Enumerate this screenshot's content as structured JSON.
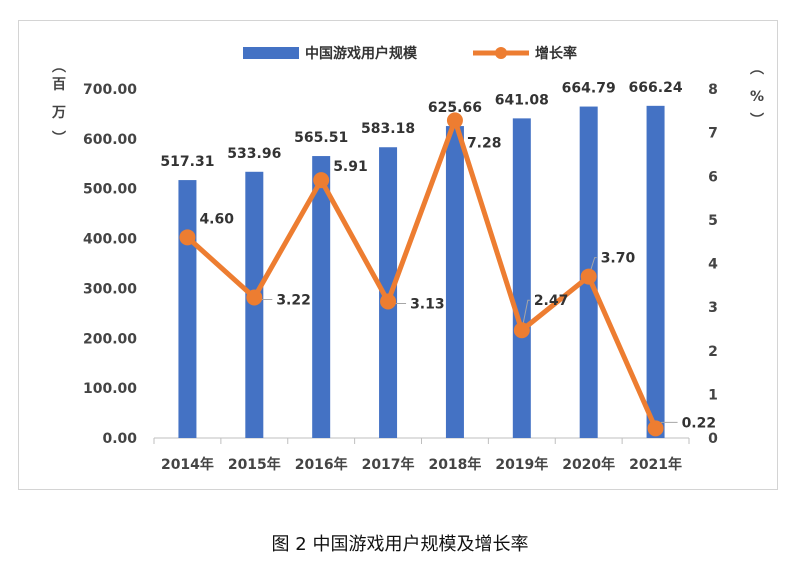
{
  "caption": "图 2 中国游戏用户规模及增长率",
  "units": {
    "left": [
      "︵",
      "百",
      "万",
      "︶"
    ],
    "right": [
      "︵",
      "%",
      "︶"
    ]
  },
  "colors": {
    "bar": "#4472C4",
    "line": "#ED7D31",
    "axis": "#bfbfbf"
  },
  "chart_data": {
    "type": "bar",
    "categories": [
      "2014年",
      "2015年",
      "2016年",
      "2017年",
      "2018年",
      "2019年",
      "2020年",
      "2021年"
    ],
    "series": [
      {
        "name": "中国游戏用户规模",
        "type": "bar",
        "axis": "left",
        "values": [
          517.31,
          533.96,
          565.51,
          583.18,
          625.66,
          641.08,
          664.79,
          666.24
        ],
        "labels": [
          "517.31",
          "533.96",
          "565.51",
          "583.18",
          "625.66",
          "641.08",
          "664.79",
          "666.24"
        ]
      },
      {
        "name": "增长率",
        "type": "line",
        "axis": "right",
        "values": [
          4.6,
          3.22,
          5.91,
          3.13,
          7.28,
          2.47,
          3.7,
          0.22
        ],
        "labels": [
          "4.60",
          "3.22",
          "5.91",
          "3.13",
          "7.28",
          "2.47",
          "3.70",
          "0.22"
        ]
      }
    ],
    "y_left": {
      "min": 0,
      "max": 700,
      "ticks": [
        0,
        100,
        200,
        300,
        400,
        500,
        600,
        700
      ],
      "tick_labels": [
        "0.00",
        "100.00",
        "200.00",
        "300.00",
        "400.00",
        "500.00",
        "600.00",
        "700.00"
      ]
    },
    "y_right": {
      "min": 0,
      "max": 8,
      "ticks": [
        0,
        1,
        2,
        3,
        4,
        5,
        6,
        7,
        8
      ],
      "tick_labels": [
        "0",
        "1",
        "2",
        "3",
        "4",
        "5",
        "6",
        "7",
        "8"
      ]
    },
    "legend_position": "top-center",
    "grid": false
  }
}
